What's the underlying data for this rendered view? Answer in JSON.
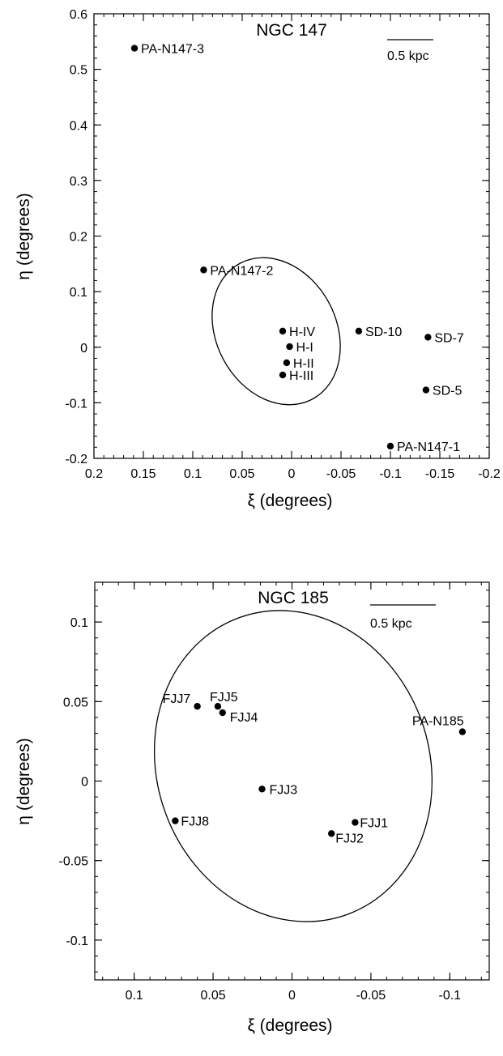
{
  "chart_data": [
    {
      "type": "scatter",
      "title": "NGC 147",
      "xlabel": "ξ (degrees)",
      "ylabel": "η (degrees)",
      "xlim": [
        0.2,
        -0.2
      ],
      "ylim": [
        -0.2,
        0.6
      ],
      "x_ticks": [
        0.2,
        0.15,
        0.1,
        0.05,
        0,
        -0.05,
        -0.1,
        -0.15,
        -0.2
      ],
      "x_tick_labels": [
        "0.2",
        "0.15",
        "0.1",
        "0.05",
        "0",
        "-0.05",
        "-0.1",
        "-0.15",
        "-0.2"
      ],
      "y_ticks": [
        -0.2,
        -0.1,
        0,
        0.1,
        0.2,
        0.3,
        0.4,
        0.5,
        0.6
      ],
      "y_tick_labels": [
        "-0.2",
        "-0.1",
        "0",
        "0.1",
        "0.2",
        "0.3",
        "0.4",
        "0.5",
        "0.6"
      ],
      "scale_bar_label": "0.5 kpc",
      "grid": false,
      "points": [
        {
          "label": "PA-N147-3",
          "x": 0.159,
          "y": 0.538
        },
        {
          "label": "PA-N147-2",
          "x": 0.089,
          "y": 0.139
        },
        {
          "label": "H-IV",
          "x": 0.009,
          "y": 0.029
        },
        {
          "label": "H-I",
          "x": 0.002,
          "y": 0.001
        },
        {
          "label": "H-II",
          "x": 0.005,
          "y": -0.028
        },
        {
          "label": "H-III",
          "x": 0.009,
          "y": -0.05
        },
        {
          "label": "SD-10",
          "x": -0.068,
          "y": 0.029
        },
        {
          "label": "SD-7",
          "x": -0.138,
          "y": 0.018
        },
        {
          "label": "SD-5",
          "x": -0.136,
          "y": -0.077
        },
        {
          "label": "PA-N147-1",
          "x": -0.1,
          "y": -0.178
        }
      ]
    },
    {
      "type": "scatter",
      "title": "NGC 185",
      "xlabel": "ξ (degrees)",
      "ylabel": "η (degrees)",
      "xlim": [
        0.125,
        -0.125
      ],
      "ylim": [
        -0.125,
        0.125
      ],
      "x_ticks": [
        0.1,
        0.05,
        0,
        -0.05,
        -0.1
      ],
      "x_tick_labels": [
        "0.1",
        "0.05",
        "0",
        "-0.05",
        "-0.1"
      ],
      "y_ticks": [
        0.1,
        0.05,
        0,
        -0.05,
        -0.1
      ],
      "y_tick_labels": [
        "0.1",
        "0.05",
        "0",
        "-0.05",
        "-0.1"
      ],
      "scale_bar_label": "0.5 kpc",
      "grid": false,
      "points": [
        {
          "label": "FJJ7",
          "x": 0.06,
          "y": 0.047
        },
        {
          "label": "FJJ5",
          "x": 0.047,
          "y": 0.047
        },
        {
          "label": "FJJ4",
          "x": 0.044,
          "y": 0.043
        },
        {
          "label": "PA-N185",
          "x": -0.108,
          "y": 0.031
        },
        {
          "label": "FJJ3",
          "x": 0.019,
          "y": -0.005
        },
        {
          "label": "FJJ8",
          "x": 0.074,
          "y": -0.025
        },
        {
          "label": "FJJ1",
          "x": -0.04,
          "y": -0.026
        },
        {
          "label": "FJJ2",
          "x": -0.025,
          "y": -0.033
        }
      ]
    }
  ]
}
